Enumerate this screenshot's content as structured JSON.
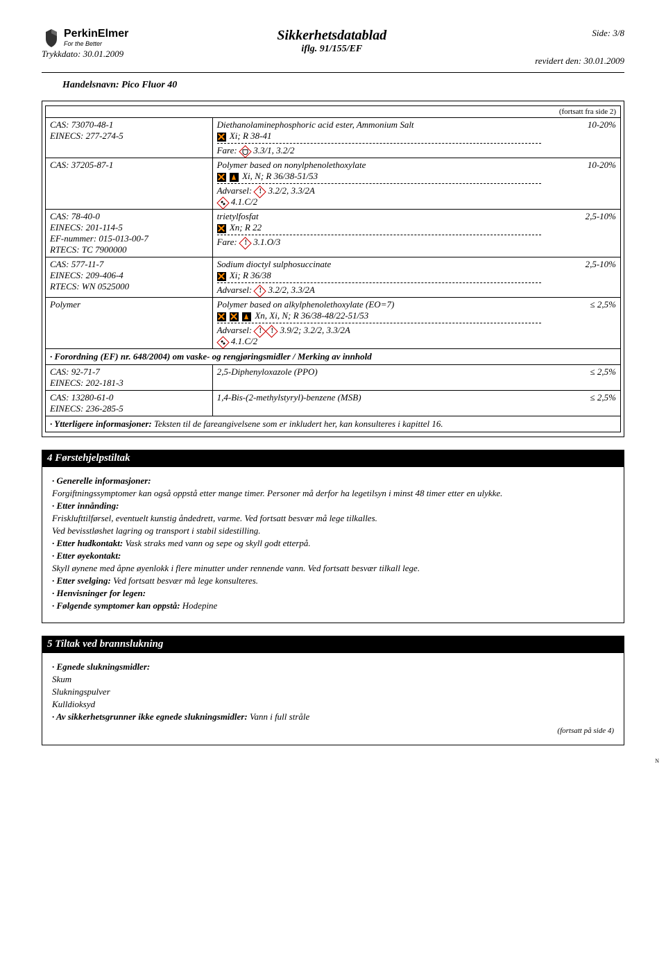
{
  "header": {
    "brand": "PerkinElmer",
    "tagline": "For the Better",
    "title": "Sikkerhetsdatablad",
    "subtitle": "iflg. 91/155/EF",
    "page": "Side: 3/8",
    "print_date": "Trykkdato: 30.01.2009",
    "revised": "revidert den: 30.01.2009",
    "product": "Handelsnavn: Pico Fluor 40"
  },
  "continuation_from": "(fortsatt fra side 2)",
  "comp": [
    {
      "ids": [
        "CAS: 73070-48-1",
        "EINECS: 277-274-5"
      ],
      "name": "Diethanolaminephosphoric acid ester, Ammonium Salt",
      "haz": [
        {
          "t": "x"
        }
      ],
      "phr": "Xi; R 38-41",
      "fare_lbl": "Fare:",
      "fare_ico": [
        {
          "t": "corr"
        }
      ],
      "fare_txt": "3.3/1, 3.2/2",
      "pct": "10-20%"
    },
    {
      "ids": [
        "CAS: 37205-87-1"
      ],
      "name": "Polymer based on nonylphenolethoxylate",
      "haz": [
        {
          "t": "x"
        },
        {
          "t": "n"
        }
      ],
      "phr": "Xi, N; R 36/38-51/53",
      "adv_lbl": "Advarsel:",
      "adv_ico": [
        {
          "t": "excl"
        }
      ],
      "adv_txt": "3.2/2, 3.3/2A",
      "extra_ico": [
        {
          "t": "env"
        }
      ],
      "extra_txt": "4.1.C/2",
      "pct": "10-20%"
    },
    {
      "ids": [
        "CAS: 78-40-0",
        "EINECS: 201-114-5",
        "EF-nummer: 015-013-00-7",
        "RTECS: TC 7900000"
      ],
      "name": "trietylfosfat",
      "haz": [
        {
          "t": "x"
        }
      ],
      "phr": "Xn; R 22",
      "fare_lbl": "Fare:",
      "fare_ico": [
        {
          "t": "excl"
        }
      ],
      "fare_txt": "3.1.O/3",
      "pct": "2,5-10%"
    },
    {
      "ids": [
        "CAS: 577-11-7",
        "EINECS: 209-406-4",
        "RTECS: WN 0525000"
      ],
      "name": "Sodium dioctyl sulphosuccinate",
      "haz": [
        {
          "t": "x"
        }
      ],
      "phr": "Xi; R 36/38",
      "adv_lbl": "Advarsel:",
      "adv_ico": [
        {
          "t": "excl"
        }
      ],
      "adv_txt": "3.2/2, 3.3/2A",
      "pct": "2,5-10%"
    },
    {
      "ids": [
        "Polymer"
      ],
      "name": "Polymer based on alkylphenolethoxylate (EO=7)",
      "haz": [
        {
          "t": "x"
        },
        {
          "t": "x"
        },
        {
          "t": "n"
        }
      ],
      "phr": "Xn, Xi, N; R 36/38-48/22-51/53",
      "adv_lbl": "Advarsel:",
      "adv_ico": [
        {
          "t": "excl"
        },
        {
          "t": "excl"
        }
      ],
      "adv_txt": "3.9/2; 3.2/2, 3.3/2A",
      "extra_ico": [
        {
          "t": "env"
        }
      ],
      "extra_txt": "4.1.C/2",
      "pct": "≤ 2,5%"
    }
  ],
  "regulation": "· Forordning (EF) nr. 648/2004) om vaske- og rengjøringsmidler / Merking av innhold",
  "reg_rows": [
    {
      "ids": [
        "CAS: 92-71-7",
        "EINECS: 202-181-3"
      ],
      "name": "2,5-Diphenyloxazole (PPO)",
      "pct": "≤ 2,5%"
    },
    {
      "ids": [
        "CAS: 13280-61-0",
        "EINECS: 236-285-5"
      ],
      "name": "1,4-Bis-(2-methylstyryl)-benzene (MSB)",
      "pct": "≤ 2,5%"
    }
  ],
  "info_note_lbl": "· Ytterligere informasjoner:",
  "info_note": "Teksten til de fareangivelsene som er inkludert her, kan konsulteres i kapittel 16.",
  "section4": {
    "title": "4 Førstehjelpstiltak",
    "gen_lbl": "· Generelle informasjoner:",
    "gen": "Forgiftningssymptomer kan også oppstå etter mange timer. Personer må derfor ha legetilsyn i minst 48 timer etter en ulykke.",
    "inh_lbl": "· Etter innånding:",
    "inh1": "Frisklufttilførsel, eventuelt kunstig åndedrett, varme. Ved fortsatt besvær må lege tilkalles.",
    "inh2": "Ved bevisstløshet lagring og transport i stabil sidestilling.",
    "skin_lbl": "· Etter hudkontakt:",
    "skin": "Vask straks med vann og sepe og skyll godt etterpå.",
    "eye_lbl": "· Etter øyekontakt:",
    "eye": "Skyll øynene med åpne øyenlokk i flere minutter under rennende vann. Ved fortsatt besvær tilkall lege.",
    "swallow_lbl": "· Etter svelging:",
    "swallow": "Ved fortsatt besvær må lege konsulteres.",
    "doctor_lbl": "· Henvisninger for legen:",
    "symptoms_lbl": "· Følgende symptomer kan oppstå:",
    "symptoms": "Hodepine"
  },
  "section5": {
    "title": "5 Tiltak ved brannslukning",
    "suitable_lbl": "· Egnede slukningsmidler:",
    "s1": "Skum",
    "s2": "Slukningspulver",
    "s3": "Kulldioksyd",
    "unsuitable_lbl": "· Av sikkerhetsgrunner ikke egnede slukningsmidler:",
    "unsuitable": "Vann i full stråle",
    "cont_to": "(fortsatt på side 4)"
  },
  "tiny": "N"
}
